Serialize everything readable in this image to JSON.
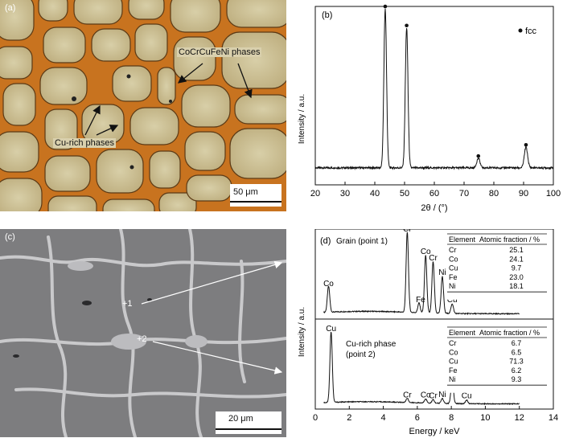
{
  "panel_a": {
    "label": "(a)",
    "annotation_phases": "CoCrCuFeNi phases",
    "annotation_cu": "Cu-rich phases",
    "scalebar": "50 μm"
  },
  "panel_c": {
    "label": "(c)",
    "marker1": "+1",
    "marker2": "+2",
    "scalebar": "20 μm"
  },
  "panel_b": {
    "label": "(b)",
    "legend": "fcc",
    "xlabel": "2θ / (°)",
    "ylabel": "Intensity / a.u."
  },
  "panel_d": {
    "label": "(d)",
    "xlabel": "Energy / keV",
    "ylabel": "Intensity / a.u.",
    "grain_title": "Grain (point 1)",
    "cu_title_line1": "Cu-rich phase",
    "cu_title_line2": "(point 2)"
  },
  "chart_data": [
    {
      "type": "line",
      "panel": "(b)",
      "xlabel": "2θ / (°)",
      "ylabel": "Intensity / a.u.",
      "xlim": [
        20,
        100
      ],
      "xticks": [
        20,
        30,
        40,
        50,
        60,
        70,
        80,
        90,
        100
      ],
      "legend": [
        "fcc"
      ],
      "peaks": [
        {
          "x": 43.5,
          "y": 1.0,
          "marker": "fcc"
        },
        {
          "x": 50.7,
          "y": 0.88,
          "marker": "fcc"
        },
        {
          "x": 74.8,
          "y": 0.06,
          "marker": "fcc"
        },
        {
          "x": 90.8,
          "y": 0.13,
          "marker": "fcc"
        }
      ]
    },
    {
      "type": "line",
      "panel": "(d)",
      "xlabel": "Energy / keV",
      "ylabel": "Intensity / a.u.",
      "xlim": [
        0,
        14
      ],
      "xticks": [
        0,
        2,
        4,
        6,
        8,
        10,
        12,
        14
      ],
      "series": [
        {
          "name": "Grain (point 1)",
          "peaks": [
            {
              "label": "Co",
              "x": 0.78,
              "y": 0.32
            },
            {
              "label": "Cr",
              "x": 5.41,
              "y": 1.0
            },
            {
              "label": "Fe",
              "x": 6.1,
              "y": 0.12
            },
            {
              "label": "Co",
              "x": 6.49,
              "y": 0.72
            },
            {
              "label": "Cr",
              "x": 6.93,
              "y": 0.64
            },
            {
              "label": "Ni",
              "x": 7.47,
              "y": 0.46
            },
            {
              "label": "Cu",
              "x": 8.05,
              "y": 0.12
            }
          ],
          "table": {
            "headers": [
              "Element",
              "Atomic fraction / %"
            ],
            "rows": [
              [
                "Cr",
                "25.1"
              ],
              [
                "Co",
                "24.1"
              ],
              [
                "Cu",
                "9.7"
              ],
              [
                "Fe",
                "23.0"
              ],
              [
                "Ni",
                "18.1"
              ]
            ]
          }
        },
        {
          "name": "Cu-rich phase (point 2)",
          "peaks": [
            {
              "label": "Cu",
              "x": 0.93,
              "y": 1.0
            },
            {
              "label": "Cr",
              "x": 5.41,
              "y": 0.06
            },
            {
              "label": "Co",
              "x": 6.49,
              "y": 0.06
            },
            {
              "label": "Cr",
              "x": 6.93,
              "y": 0.05
            },
            {
              "label": "Ni",
              "x": 7.47,
              "y": 0.07
            },
            {
              "label": "Cu",
              "x": 8.05,
              "y": 0.36
            },
            {
              "label": "Cu",
              "x": 8.9,
              "y": 0.05
            }
          ],
          "table": {
            "headers": [
              "Element",
              "Atomic fraction / %"
            ],
            "rows": [
              [
                "Cr",
                "6.7"
              ],
              [
                "Co",
                "6.5"
              ],
              [
                "Cu",
                "71.3"
              ],
              [
                "Fe",
                "6.2"
              ],
              [
                "Ni",
                "9.3"
              ]
            ]
          }
        }
      ]
    }
  ]
}
